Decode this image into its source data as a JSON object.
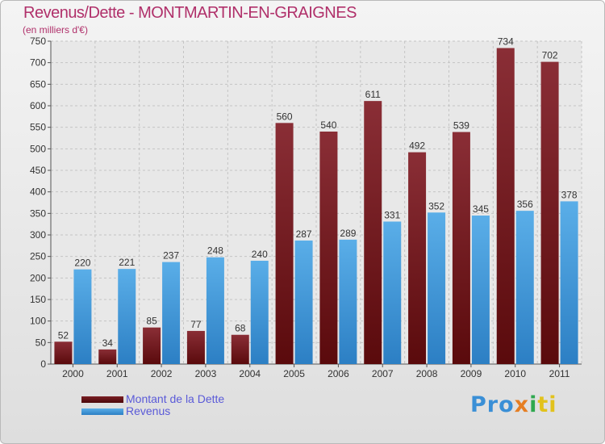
{
  "title": "Revenus/Dette - MONTMARTIN-EN-GRAIGNES",
  "subtitle": "(en milliers d'€)",
  "colors": {
    "title": "#b0306a",
    "dette_top": "#8a2e36",
    "dette_bottom": "#5a0a0c",
    "revenus_top": "#5aaee8",
    "revenus_bottom": "#2c7fc4",
    "legend_text": "#5a5ad8"
  },
  "legend": {
    "dette": "Montant de la Dette",
    "revenus": "Revenus"
  },
  "logo": {
    "part1": "Pro",
    "part2": "x",
    "part3": "i",
    "part4": "ti"
  },
  "chart_data": {
    "type": "bar",
    "title": "Revenus/Dette - MONTMARTIN-EN-GRAIGNES",
    "ylabel": "(en milliers d'€)",
    "xlabel": "",
    "ylim": [
      0,
      750
    ],
    "yticks": [
      0,
      50,
      100,
      150,
      200,
      250,
      300,
      350,
      400,
      450,
      500,
      550,
      600,
      650,
      700,
      750
    ],
    "categories": [
      "2000",
      "2001",
      "2002",
      "2003",
      "2004",
      "2005",
      "2006",
      "2007",
      "2008",
      "2009",
      "2010",
      "2011"
    ],
    "series": [
      {
        "name": "Montant de la Dette",
        "values": [
          52,
          34,
          85,
          77,
          68,
          560,
          540,
          611,
          492,
          539,
          734,
          702
        ]
      },
      {
        "name": "Revenus",
        "values": [
          220,
          221,
          237,
          248,
          240,
          287,
          289,
          331,
          352,
          345,
          356,
          378
        ]
      }
    ],
    "grid": true,
    "legend_position": "bottom-left"
  }
}
